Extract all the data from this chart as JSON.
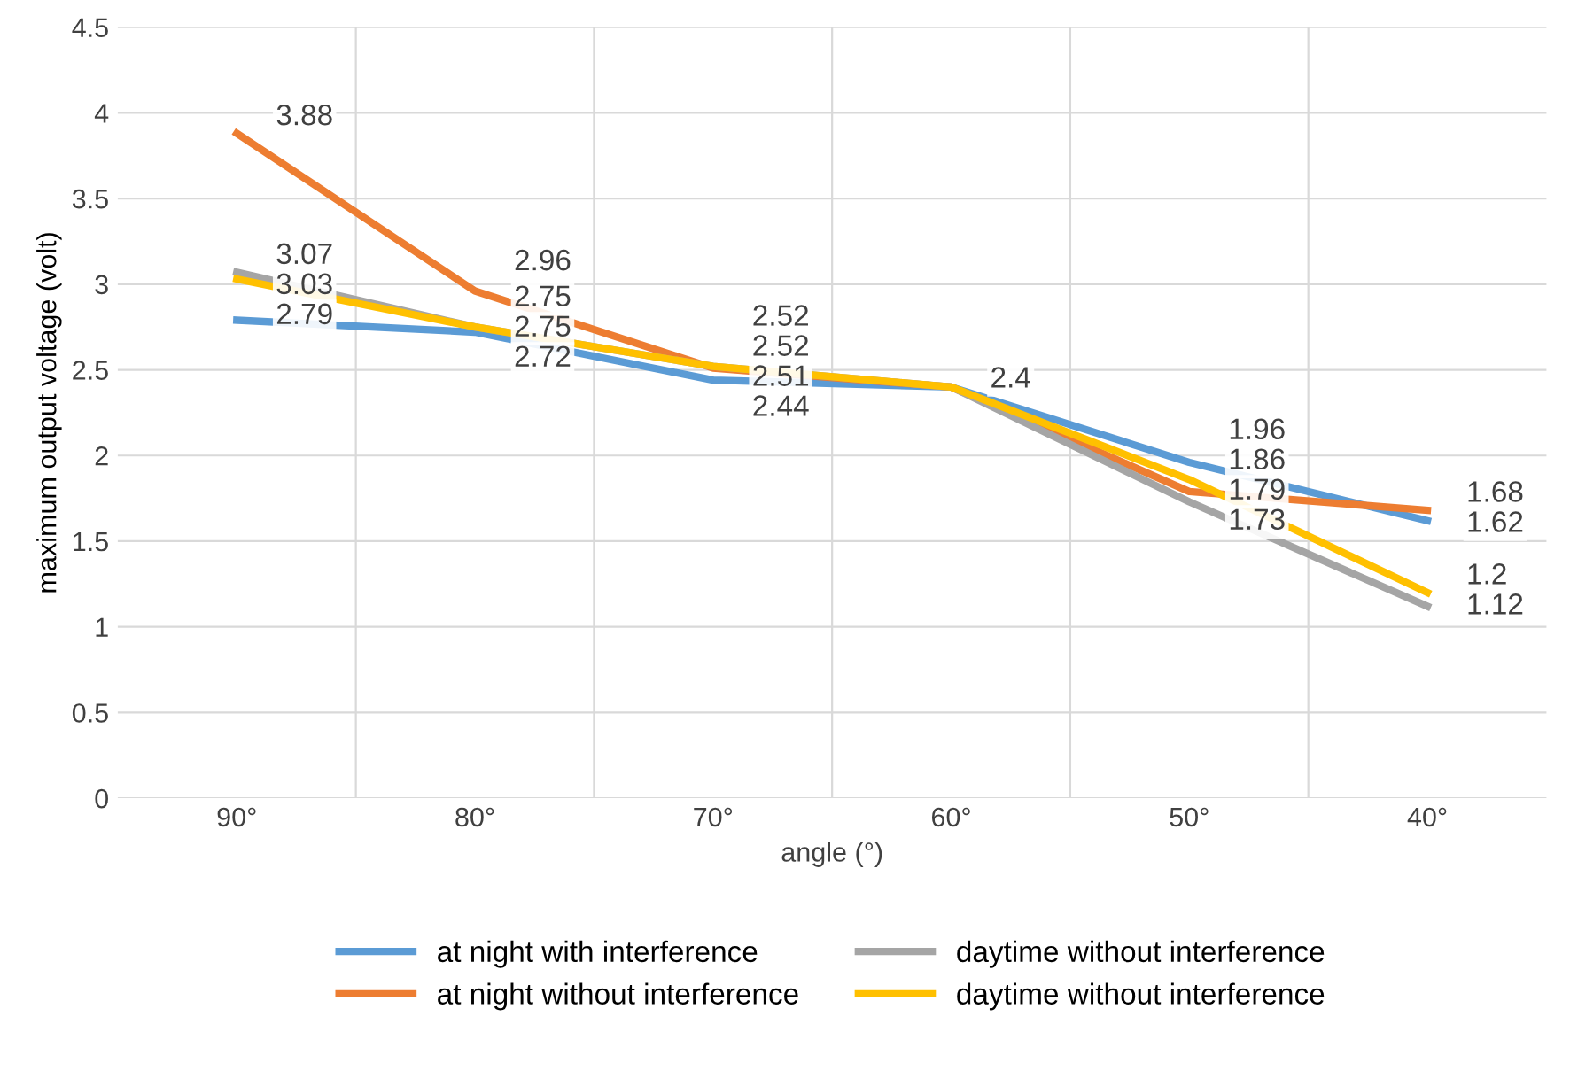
{
  "chart_data": {
    "type": "line",
    "xlabel": "angle (°)",
    "ylabel": "maximum output voltage (volt)",
    "categories": [
      "90°",
      "80°",
      "70°",
      "60°",
      "50°",
      "40°"
    ],
    "series": [
      {
        "name": "at night with interference",
        "color": "#5b9bd5",
        "values": [
          2.79,
          2.72,
          2.44,
          2.4,
          1.96,
          1.62
        ],
        "value_labels": [
          "2.79",
          "2.72",
          "2.44",
          "2.4",
          "1.96",
          "1.62"
        ]
      },
      {
        "name": "at night without interference",
        "color": "#ed7d31",
        "values": [
          3.88,
          2.96,
          2.51,
          2.4,
          1.79,
          1.68
        ],
        "value_labels": [
          "3.88",
          "2.96",
          "2.51",
          null,
          "1.79",
          "1.68"
        ]
      },
      {
        "name": "daytime without interference",
        "color": "#a5a5a5",
        "values": [
          3.07,
          2.75,
          2.52,
          2.4,
          1.73,
          1.12
        ],
        "value_labels": [
          "3.07",
          "2.75",
          "2.52",
          null,
          "1.73",
          "1.12"
        ]
      },
      {
        "name": "daytime without interference",
        "color": "#ffc000",
        "values": [
          3.03,
          2.75,
          2.52,
          2.4,
          1.86,
          1.2
        ],
        "value_labels": [
          "3.03",
          "2.75",
          "2.52",
          null,
          "1.86",
          "1.2"
        ]
      }
    ],
    "ylim": [
      0,
      4.5
    ],
    "yticks": [
      0,
      0.5,
      1,
      1.5,
      2,
      2.5,
      3,
      3.5,
      4,
      4.5
    ],
    "grid": true,
    "legend": "bottom",
    "marker": "none",
    "line_style": "solid"
  }
}
